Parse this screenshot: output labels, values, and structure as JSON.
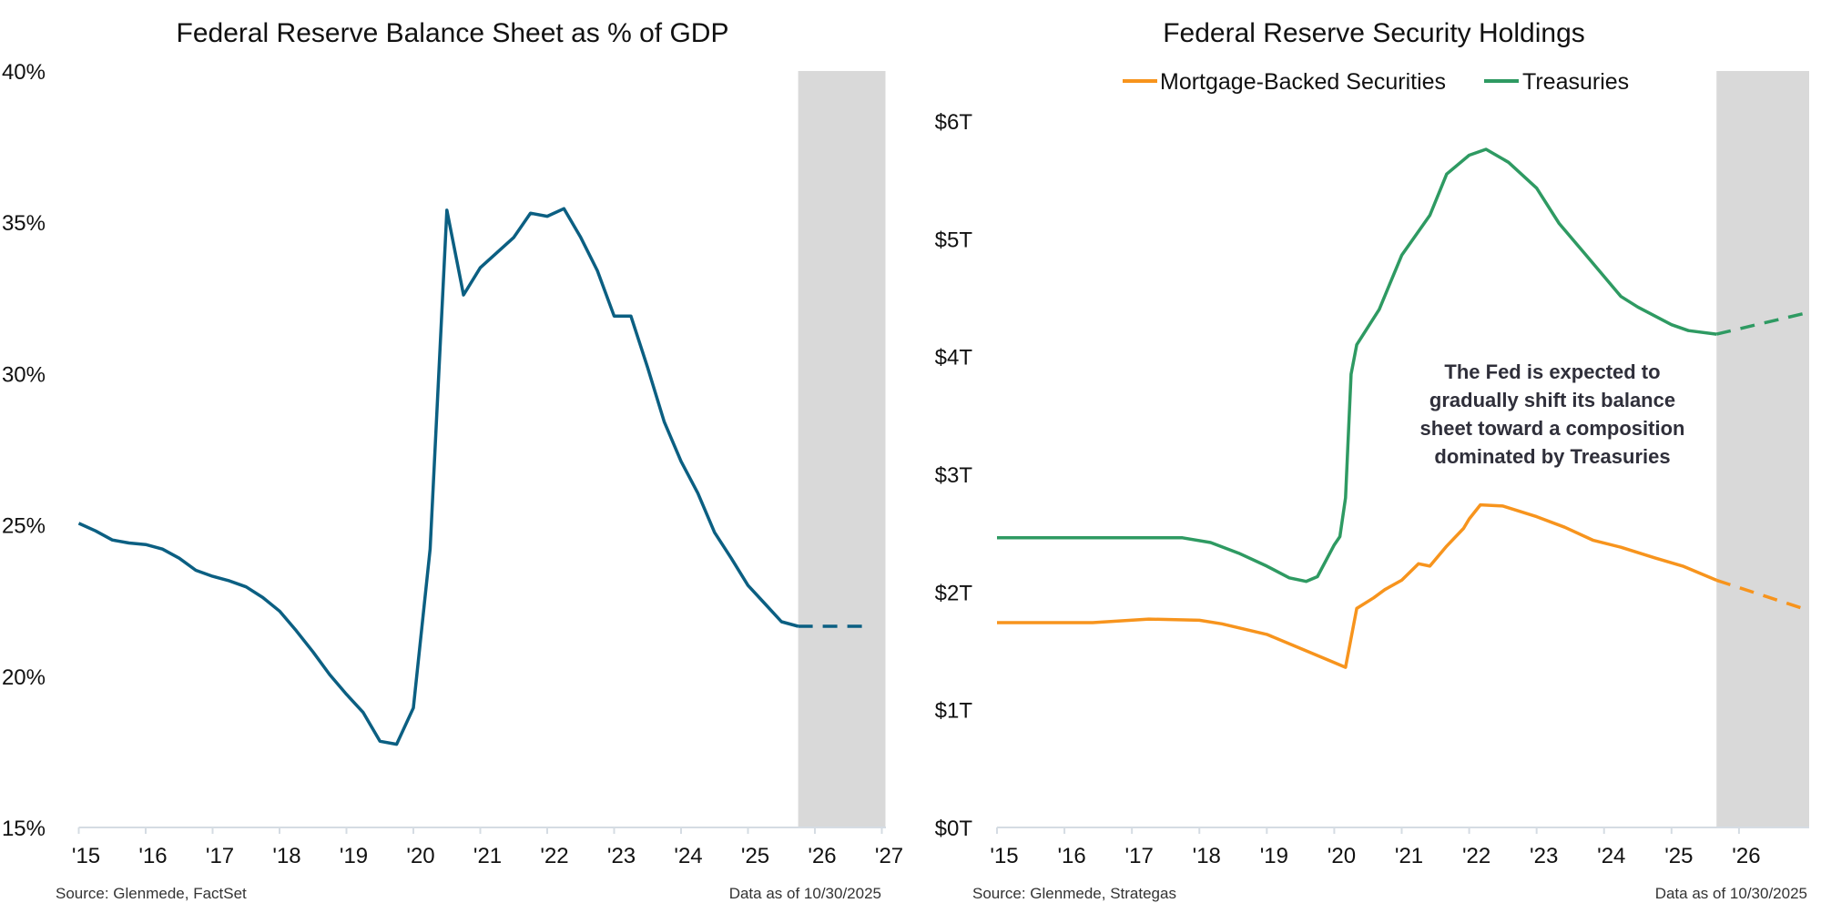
{
  "chart_data": [
    {
      "type": "line",
      "title": "Federal Reserve Balance Sheet as % of GDP",
      "xlabel": "",
      "ylabel": "",
      "x_ticks": [
        "'15",
        "'16",
        "'17",
        "'18",
        "'19",
        "'20",
        "'21",
        "'22",
        "'23",
        "'24",
        "'25",
        "'26",
        "'27"
      ],
      "y_ticks": [
        "15%",
        "20%",
        "25%",
        "30%",
        "35%",
        "40%"
      ],
      "y_tick_values": [
        15,
        20,
        25,
        30,
        35,
        40
      ],
      "xlim": [
        "2015-01",
        "2027-01"
      ],
      "ylim": [
        15,
        40
      ],
      "grid": false,
      "shaded_range": [
        "2025-10",
        "2027-01"
      ],
      "series": [
        {
          "color": "#0b5f82",
          "style": "solid",
          "x": [
            "2015-01",
            "2015-04",
            "2015-07",
            "2015-10",
            "2016-01",
            "2016-04",
            "2016-07",
            "2016-10",
            "2017-01",
            "2017-04",
            "2017-07",
            "2017-10",
            "2018-01",
            "2018-04",
            "2018-07",
            "2018-10",
            "2019-01",
            "2019-04",
            "2019-07",
            "2019-10",
            "2020-01",
            "2020-04",
            "2020-07",
            "2020-10",
            "2021-01",
            "2021-04",
            "2021-07",
            "2021-10",
            "2022-01",
            "2022-04",
            "2022-07",
            "2022-10",
            "2023-01",
            "2023-04",
            "2023-07",
            "2023-10",
            "2024-01",
            "2024-04",
            "2024-07",
            "2024-10",
            "2025-01",
            "2025-04",
            "2025-07",
            "2025-10"
          ],
          "values": [
            25.05,
            24.8,
            24.5,
            24.4,
            24.35,
            24.2,
            23.9,
            23.5,
            23.3,
            23.15,
            22.95,
            22.6,
            22.15,
            21.5,
            20.8,
            20.05,
            19.4,
            18.8,
            17.85,
            17.75,
            18.95,
            24.2,
            35.4,
            32.6,
            33.5,
            34.0,
            34.5,
            35.3,
            35.2,
            35.45,
            34.5,
            33.4,
            31.9,
            31.9,
            30.2,
            28.4,
            27.1,
            26.05,
            24.75,
            23.9,
            23.0,
            22.4,
            21.8,
            21.65
          ]
        },
        {
          "color": "#0b5f82",
          "style": "dashed",
          "x": [
            "2025-10",
            "2026-10"
          ],
          "values": [
            21.65,
            21.65
          ]
        }
      ],
      "source": "Source: Glenmede, FactSet",
      "data_as_of": "Data as of 10/30/2025"
    },
    {
      "type": "line",
      "title": "Federal Reserve Security Holdings",
      "xlabel": "",
      "ylabel": "",
      "x_ticks": [
        "'15",
        "'16",
        "'17",
        "'18",
        "'19",
        "'20",
        "'21",
        "'22",
        "'23",
        "'24",
        "'25",
        "'26"
      ],
      "y_ticks": [
        "$0T",
        "$1T",
        "$2T",
        "$3T",
        "$4T",
        "$5T",
        "$6T"
      ],
      "y_tick_values": [
        0,
        1,
        2,
        3,
        4,
        5,
        6
      ],
      "xlim": [
        "2015-01",
        "2027-01"
      ],
      "ylim": [
        0,
        6
      ],
      "grid": false,
      "legend_position": "top",
      "shaded_range": [
        "2025-09",
        "2027-01"
      ],
      "annotation": [
        "The Fed is expected to",
        "gradually shift its balance",
        "sheet toward a composition",
        "dominated by Treasuries"
      ],
      "series": [
        {
          "name": "Mortgage-Backed Securities",
          "color": "#f7941d",
          "x": [
            "2015-01",
            "2016-06",
            "2017-04",
            "2018-01",
            "2018-05",
            "2019-01",
            "2019-07",
            "2020-01",
            "2020-03",
            "2020-05",
            "2020-08",
            "2020-10",
            "2021-01",
            "2021-04",
            "2021-06",
            "2021-09",
            "2021-12",
            "2022-01",
            "2022-03",
            "2022-07",
            "2023-01",
            "2023-06",
            "2023-11",
            "2024-04",
            "2024-10",
            "2025-03",
            "2025-09"
          ],
          "values": [
            1.74,
            1.74,
            1.77,
            1.76,
            1.73,
            1.64,
            1.52,
            1.4,
            1.36,
            1.86,
            1.95,
            2.02,
            2.1,
            2.24,
            2.22,
            2.39,
            2.54,
            2.62,
            2.74,
            2.73,
            2.64,
            2.55,
            2.44,
            2.38,
            2.29,
            2.22,
            2.1
          ],
          "projection": {
            "x": [
              "2025-09",
              "2027-01"
            ],
            "values": [
              2.1,
              1.85
            ]
          }
        },
        {
          "name": "Treasuries",
          "color": "#2e9a62",
          "x": [
            "2015-01",
            "2017-10",
            "2018-03",
            "2018-08",
            "2019-01",
            "2019-05",
            "2019-08",
            "2019-10",
            "2020-01",
            "2020-02",
            "2020-03",
            "2020-04",
            "2020-05",
            "2020-09",
            "2021-01",
            "2021-06",
            "2021-09",
            "2022-01",
            "2022-04",
            "2022-08",
            "2023-01",
            "2023-05",
            "2023-10",
            "2024-04",
            "2024-07",
            "2025-01",
            "2025-04",
            "2025-09"
          ],
          "values": [
            2.46,
            2.46,
            2.42,
            2.33,
            2.22,
            2.12,
            2.09,
            2.13,
            2.4,
            2.47,
            2.8,
            3.85,
            4.1,
            4.4,
            4.86,
            5.2,
            5.55,
            5.71,
            5.76,
            5.65,
            5.43,
            5.13,
            4.85,
            4.51,
            4.42,
            4.27,
            4.22,
            4.19
          ],
          "projection": {
            "x": [
              "2025-09",
              "2027-01"
            ],
            "values": [
              4.19,
              4.37
            ]
          }
        }
      ],
      "source": "Source: Glenmede, Strategas",
      "data_as_of": "Data as of 10/30/2025"
    }
  ]
}
